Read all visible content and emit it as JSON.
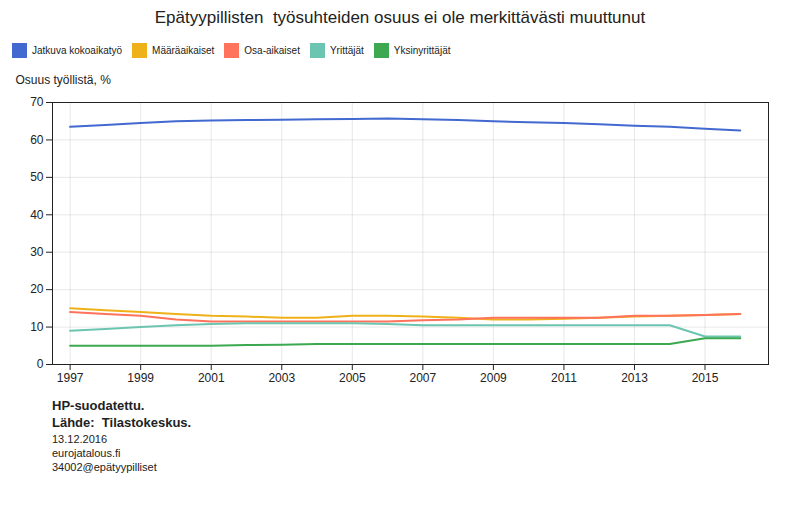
{
  "chart_data": {
    "type": "line",
    "title": "Epätyypillisten  työsuhteiden osuus ei ole merkittävästi muuttunut",
    "ylabel": "Osuus työllistä, %",
    "x": [
      1997,
      1998,
      1999,
      2000,
      2001,
      2002,
      2003,
      2004,
      2005,
      2006,
      2007,
      2008,
      2009,
      2010,
      2011,
      2012,
      2013,
      2014,
      2015,
      2016
    ],
    "series": [
      {
        "name": "Jatkuva kokoaikatyö",
        "values": [
          63.5,
          64.0,
          64.5,
          65.0,
          65.2,
          65.3,
          65.4,
          65.5,
          65.6,
          65.7,
          65.5,
          65.3,
          65.0,
          64.7,
          64.5,
          64.2,
          63.8,
          63.5,
          63.0,
          62.5
        ]
      },
      {
        "name": "Määräaikaiset",
        "values": [
          15.0,
          14.5,
          14.0,
          13.5,
          13.0,
          12.8,
          12.5,
          12.5,
          13.0,
          13.0,
          12.8,
          12.5,
          12.0,
          12.0,
          12.2,
          12.5,
          12.8,
          13.0,
          13.2,
          13.5
        ]
      },
      {
        "name": "Osa-aikaiset",
        "values": [
          14.0,
          13.5,
          13.0,
          12.0,
          11.5,
          11.5,
          11.5,
          11.5,
          11.5,
          11.5,
          11.8,
          12.0,
          12.5,
          12.5,
          12.5,
          12.5,
          13.0,
          13.0,
          13.2,
          13.5
        ]
      },
      {
        "name": "Yrittäjät",
        "values": [
          9.0,
          9.5,
          10.0,
          10.5,
          10.8,
          11.0,
          11.0,
          11.0,
          11.0,
          10.8,
          10.5,
          10.5,
          10.5,
          10.5,
          10.5,
          10.5,
          10.5,
          10.5,
          7.5,
          7.5
        ]
      },
      {
        "name": "Yksinyrittäjät",
        "values": [
          5.0,
          5.0,
          5.0,
          5.0,
          5.0,
          5.2,
          5.3,
          5.5,
          5.5,
          5.5,
          5.5,
          5.5,
          5.5,
          5.5,
          5.5,
          5.5,
          5.5,
          5.5,
          7.0,
          7.0
        ]
      }
    ],
    "xlim": [
      1996.5,
      2016.8
    ],
    "xticks": [
      1997,
      1999,
      2001,
      2003,
      2005,
      2007,
      2009,
      2011,
      2013,
      2015
    ],
    "ylim": [
      0,
      70
    ],
    "yticks": [
      0,
      10,
      20,
      30,
      40,
      50,
      60,
      70
    ],
    "grid": true,
    "legend": "top",
    "annotations": [
      "HP-suodatettu.",
      "Lähde:  Tilastokeskus.",
      "13.12.2016",
      "eurojatalous.fi",
      "34002@epätyypilliset"
    ]
  }
}
